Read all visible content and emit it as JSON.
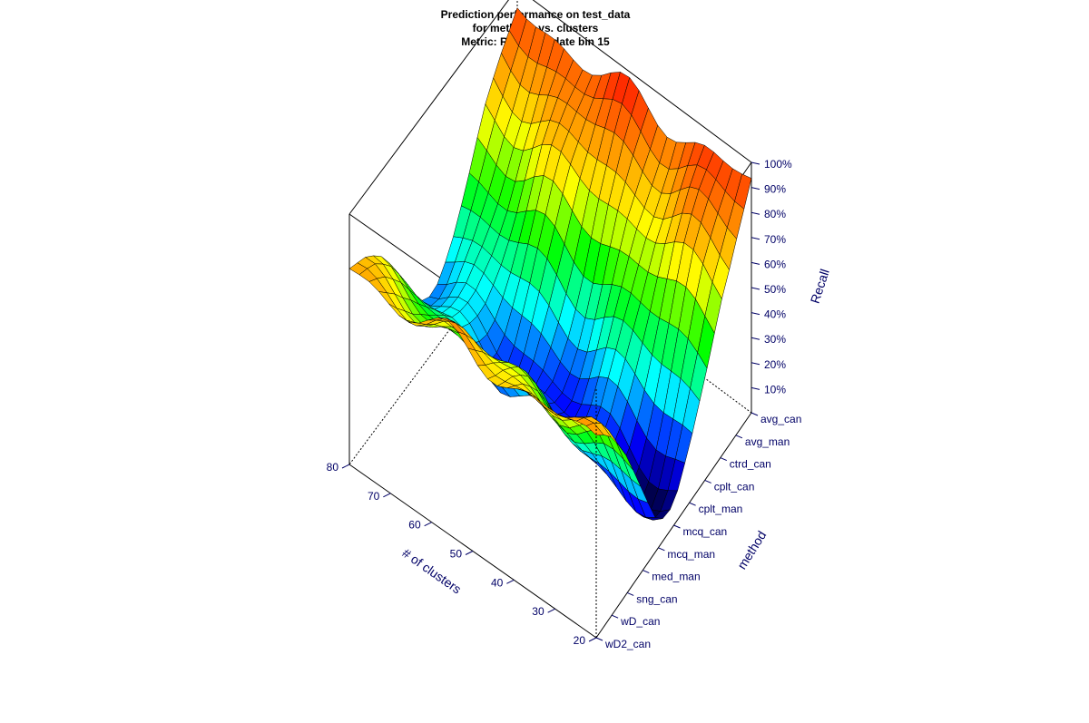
{
  "chart_data": {
    "type": "surface3d",
    "title": [
      "Prediction performance on test_data",
      "for methods vs. clusters",
      "Metric: Recall for date bin 15"
    ],
    "x_axis": {
      "label": "# of clusters",
      "range": [
        20,
        80
      ],
      "ticks": [
        20,
        30,
        40,
        50,
        60,
        70,
        80
      ]
    },
    "y_axis": {
      "label": "method",
      "categories": [
        "wD2_can",
        "wD_can",
        "sng_can",
        "med_man",
        "mcq_man",
        "mcq_can",
        "cplt_man",
        "cplt_can",
        "ctrd_can",
        "avg_man",
        "avg_can"
      ]
    },
    "z_axis": {
      "label": "Recall",
      "range": [
        0,
        100
      ],
      "ticks": [
        "10%",
        "20%",
        "30%",
        "40%",
        "50%",
        "60%",
        "70%",
        "80%",
        "90%",
        "100%"
      ]
    },
    "colormap": [
      "#000000",
      "#0000ff",
      "#00ffff",
      "#00ff00",
      "#ffff00",
      "#ff8000",
      "#ff0000"
    ],
    "grid_resolution": [
      25,
      21
    ],
    "recall_by_method": [
      {
        "method": "avg_can",
        "recall": 91
      },
      {
        "method": "avg_man",
        "recall": 80
      },
      {
        "method": "ctrd_can",
        "recall": 67
      },
      {
        "method": "cplt_can",
        "recall": 47
      },
      {
        "method": "cplt_man",
        "recall": 30
      },
      {
        "method": "mcq_can",
        "recall": 18
      },
      {
        "method": "mcq_man",
        "recall": 20
      },
      {
        "method": "med_man",
        "recall": 38
      },
      {
        "method": "sng_can",
        "recall": 55
      },
      {
        "method": "wD_can",
        "recall": 68
      },
      {
        "method": "wD2_can",
        "recall": 78
      }
    ]
  }
}
